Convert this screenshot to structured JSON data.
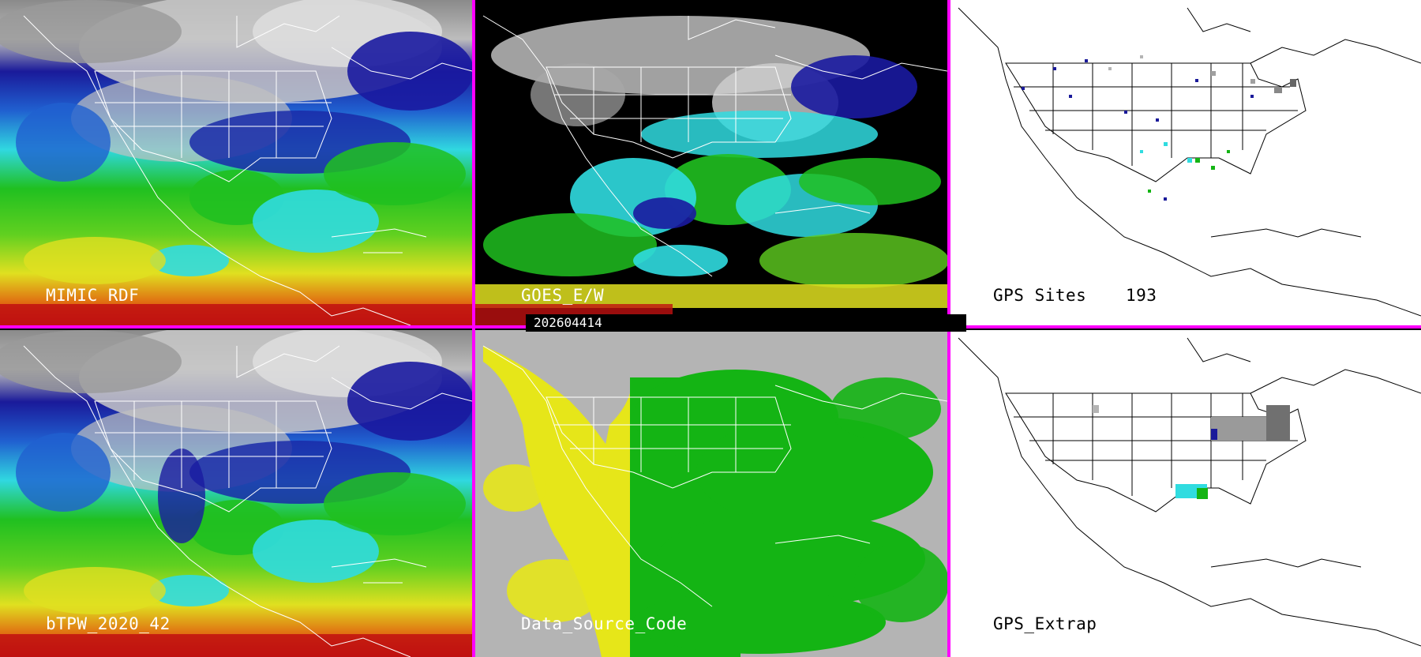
{
  "panels": {
    "top_left": {
      "label": "MIMIC RDF"
    },
    "top_middle": {
      "label": "GOES_E/W"
    },
    "top_right": {
      "label": "GPS Sites",
      "count": "193"
    },
    "bottom_left": {
      "label": "bTPW_2020_42"
    },
    "bottom_middle": {
      "label": "Data_Source_Code"
    },
    "bottom_right": {
      "label": "GPS_Extrap"
    }
  },
  "timestamp": "202604414",
  "colors": {
    "divider": "#ff00ff",
    "map_lines": "#ffffff",
    "gps_background": "#ffffff",
    "source_gray": "#b4b4b4",
    "source_yellow": "#e6e619",
    "source_green": "#14b414"
  }
}
